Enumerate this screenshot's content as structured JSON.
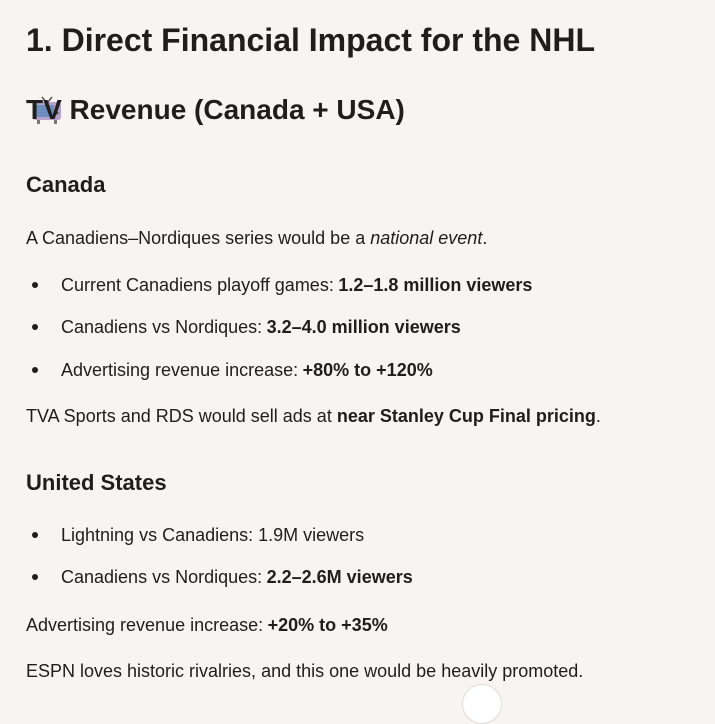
{
  "heading": "1. Direct Financial Impact for the NHL",
  "subheading": "TV Revenue (Canada + USA)",
  "canada": {
    "title": "Canada",
    "intro": {
      "before": "A Canadiens–Nordiques series would be a",
      "emphasis": "national event",
      "after": "."
    },
    "bullets": [
      {
        "label": "Current Canadiens playoff games:",
        "value": "1.2–1.8 million viewers"
      },
      {
        "label": "Canadiens vs Nordiques:",
        "value": "3.2–4.0 million viewers"
      },
      {
        "label": "Advertising revenue increase:",
        "value": "+80% to +120%"
      }
    ],
    "closing": {
      "before": "TVA Sports and RDS would sell ads at",
      "strong": "near Stanley Cup Final pricing",
      "after": "."
    }
  },
  "usa": {
    "title": "United States",
    "bullets": [
      {
        "label": "Lightning vs Canadiens: 1.9M viewers"
      },
      {
        "label": "Canadiens vs Nordiques:",
        "value": "2.2–2.6M viewers"
      }
    ],
    "ad_increase": {
      "label": "Advertising revenue increase:",
      "value": "+20% to +35%"
    },
    "closing": "ESPN loves historic rivalries, and this one would be heavily promoted."
  }
}
